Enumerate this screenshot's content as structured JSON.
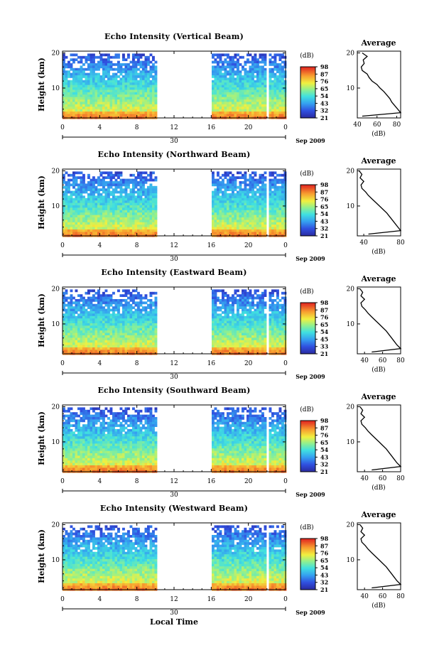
{
  "figure": {
    "xlabel": "Local Time",
    "date_label": "Sep 2009",
    "day_label": "30",
    "ylabel": "Height (km)",
    "cbar_unit": "(dB)",
    "avg_title": "Average",
    "avg_xlabel": "(dB)"
  },
  "chart_data": [
    {
      "type": "heatmap",
      "title": "Echo Intensity (Vertical Beam)",
      "xlabel": "Local Time",
      "ylabel": "Height (km)",
      "x_ticks": [
        "0",
        "4",
        "8",
        "12",
        "16",
        "20",
        "0"
      ],
      "xlim": [
        0,
        24
      ],
      "y_ticks": [
        "10",
        "20"
      ],
      "ylim": [
        1.5,
        20.5
      ],
      "colorbar": {
        "label": "(dB)",
        "ticks": [
          "21",
          "32",
          "43",
          "54",
          "65",
          "76",
          "87",
          "98"
        ],
        "range": [
          21,
          98
        ]
      },
      "data_gaps_hours": [
        [
          10.2,
          16.1
        ],
        [
          21.9,
          22.3
        ]
      ],
      "profile": {
        "title": "Average",
        "xlabel": "(dB)",
        "x_ticks": [
          "40",
          "60",
          "80"
        ],
        "xlim": [
          40,
          84
        ],
        "heights_km": [
          2,
          3,
          4,
          5,
          6,
          7,
          8,
          9,
          10,
          11,
          12,
          13,
          14,
          15,
          16,
          17,
          18,
          19,
          20
        ],
        "values_db": [
          45,
          84,
          81,
          78,
          75,
          73,
          70,
          67,
          63,
          60,
          55,
          52,
          50,
          45,
          44,
          47,
          46,
          50,
          45
        ]
      }
    },
    {
      "type": "heatmap",
      "title": "Echo Intensity (Northward Beam)",
      "xlabel": "Local Time",
      "ylabel": "Height (km)",
      "x_ticks": [
        "0",
        "4",
        "8",
        "12",
        "16",
        "20",
        "0"
      ],
      "xlim": [
        0,
        24
      ],
      "y_ticks": [
        "10",
        "20"
      ],
      "ylim": [
        1.5,
        20.5
      ],
      "colorbar": {
        "label": "(dB)",
        "ticks": [
          "21",
          "32",
          "43",
          "54",
          "65",
          "76",
          "87",
          "98"
        ],
        "range": [
          21,
          98
        ]
      },
      "data_gaps_hours": [
        [
          10.2,
          16.1
        ],
        [
          21.9,
          22.3
        ]
      ],
      "profile": {
        "title": "Average",
        "xlabel": "(dB)",
        "x_ticks": [
          "40",
          "80"
        ],
        "xlim": [
          33,
          80
        ],
        "heights_km": [
          2,
          3,
          4,
          5,
          6,
          7,
          8,
          9,
          10,
          11,
          12,
          13,
          14,
          15,
          16,
          17,
          18,
          19,
          20
        ],
        "values_db": [
          45,
          80,
          77,
          74,
          71,
          68,
          65,
          61,
          57,
          53,
          49,
          45,
          42,
          38,
          37,
          40,
          36,
          38,
          35
        ]
      }
    },
    {
      "type": "heatmap",
      "title": "Echo Intensity (Eastward Beam)",
      "xlabel": "Local Time",
      "ylabel": "Height (km)",
      "x_ticks": [
        "0",
        "4",
        "8",
        "12",
        "16",
        "20",
        "0"
      ],
      "xlim": [
        0,
        24
      ],
      "y_ticks": [
        "10",
        "20"
      ],
      "ylim": [
        1.5,
        20.5
      ],
      "colorbar": {
        "label": "(dB)",
        "ticks": [
          "21",
          "33",
          "45",
          "54",
          "65",
          "76",
          "87",
          "98"
        ],
        "range": [
          21,
          98
        ]
      },
      "data_gaps_hours": [
        [
          10.2,
          16.1
        ],
        [
          21.9,
          22.3
        ]
      ],
      "profile": {
        "title": "Average",
        "xlabel": "(dB)",
        "x_ticks": [
          "40",
          "60",
          "80"
        ],
        "xlim": [
          32,
          80
        ],
        "heights_km": [
          2,
          3,
          4,
          5,
          6,
          7,
          8,
          9,
          10,
          11,
          12,
          13,
          14,
          15,
          16,
          17,
          18,
          19,
          20
        ],
        "values_db": [
          48,
          80,
          76,
          73,
          70,
          67,
          64,
          60,
          56,
          52,
          48,
          44,
          41,
          37,
          36,
          40,
          36,
          38,
          35
        ]
      }
    },
    {
      "type": "heatmap",
      "title": "Echo Intensity (Southward Beam)",
      "xlabel": "Local Time",
      "ylabel": "Height (km)",
      "x_ticks": [
        "0",
        "4",
        "8",
        "12",
        "16",
        "20",
        "0"
      ],
      "xlim": [
        0,
        24
      ],
      "y_ticks": [
        "10",
        "20"
      ],
      "ylim": [
        1.5,
        20.5
      ],
      "colorbar": {
        "label": "(dB)",
        "ticks": [
          "21",
          "32",
          "43",
          "54",
          "65",
          "76",
          "87",
          "98"
        ],
        "range": [
          21,
          98
        ]
      },
      "data_gaps_hours": [
        [
          10.2,
          16.1
        ],
        [
          21.9,
          22.3
        ]
      ],
      "profile": {
        "title": "Average",
        "xlabel": "(dB)",
        "x_ticks": [
          "40",
          "60",
          "80"
        ],
        "xlim": [
          32,
          80
        ],
        "heights_km": [
          2,
          3,
          4,
          5,
          6,
          7,
          8,
          9,
          10,
          11,
          12,
          13,
          14,
          15,
          16,
          17,
          18,
          19,
          20
        ],
        "values_db": [
          48,
          80,
          76,
          73,
          70,
          67,
          64,
          60,
          56,
          52,
          48,
          44,
          41,
          37,
          36,
          40,
          36,
          38,
          35
        ]
      }
    },
    {
      "type": "heatmap",
      "title": "Echo Intensity (Westward Beam)",
      "xlabel": "Local Time",
      "ylabel": "Height (km)",
      "x_ticks": [
        "0",
        "4",
        "8",
        "12",
        "16",
        "20",
        "0"
      ],
      "xlim": [
        0,
        24
      ],
      "y_ticks": [
        "10",
        "20"
      ],
      "ylim": [
        1.5,
        20.5
      ],
      "colorbar": {
        "label": "(dB)",
        "ticks": [
          "21",
          "32",
          "43",
          "54",
          "65",
          "76",
          "87",
          "98"
        ],
        "range": [
          21,
          98
        ]
      },
      "data_gaps_hours": [
        [
          10.2,
          16.1
        ],
        [
          21.9,
          22.3
        ]
      ],
      "profile": {
        "title": "Average",
        "xlabel": "(dB)",
        "x_ticks": [
          "40",
          "60",
          "80"
        ],
        "xlim": [
          32,
          80
        ],
        "heights_km": [
          2,
          3,
          4,
          5,
          6,
          7,
          8,
          9,
          10,
          11,
          12,
          13,
          14,
          15,
          16,
          17,
          18,
          19,
          20
        ],
        "values_db": [
          48,
          80,
          76,
          73,
          70,
          67,
          64,
          60,
          56,
          52,
          48,
          44,
          41,
          37,
          36,
          40,
          36,
          38,
          35
        ]
      }
    }
  ]
}
